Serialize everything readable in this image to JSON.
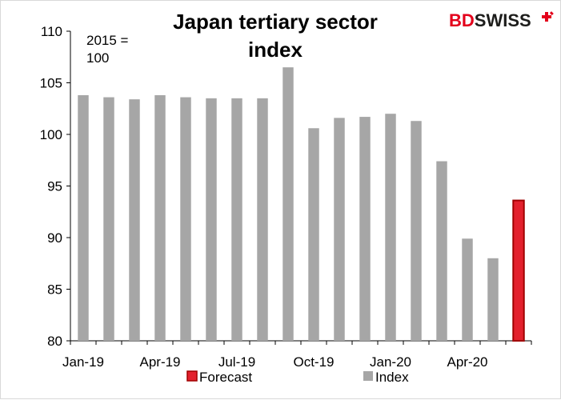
{
  "brand": {
    "part1": "BD",
    "part2": "SWISS",
    "color1": "#e3001b",
    "color2": "#1d1d1b",
    "cross_icon": "swiss-cross-icon"
  },
  "chart_data": {
    "type": "bar",
    "title_lines": [
      "Japan tertiary sector",
      "index"
    ],
    "note_lines": [
      "2015 =",
      "100"
    ],
    "categories": [
      "Jan-19",
      "Feb-19",
      "Mar-19",
      "Apr-19",
      "May-19",
      "Jun-19",
      "Jul-19",
      "Aug-19",
      "Sep-19",
      "Oct-19",
      "Nov-19",
      "Dec-19",
      "Jan-20",
      "Feb-20",
      "Mar-20",
      "Apr-20",
      "May-20",
      "Jun-20"
    ],
    "x_tick_labels": [
      "Jan-19",
      "Apr-19",
      "Jul-19",
      "Oct-19",
      "Jan-20",
      "Apr-20"
    ],
    "x_tick_indices": [
      0,
      3,
      6,
      9,
      12,
      15
    ],
    "values": [
      103.8,
      103.6,
      103.4,
      103.8,
      103.6,
      103.5,
      103.5,
      103.5,
      106.5,
      100.6,
      101.6,
      101.7,
      102.0,
      101.3,
      97.4,
      89.9,
      88.0,
      93.6
    ],
    "series": [
      {
        "name": "Forecast",
        "color": "#e3212d",
        "border": "#a00000"
      },
      {
        "name": "Index",
        "color": "#a6a6a6"
      }
    ],
    "forecast_from_index": 17,
    "ylim": [
      80,
      110
    ],
    "y_ticks": [
      80,
      85,
      90,
      95,
      100,
      105,
      110
    ],
    "grid": false,
    "legend": "bottom"
  }
}
